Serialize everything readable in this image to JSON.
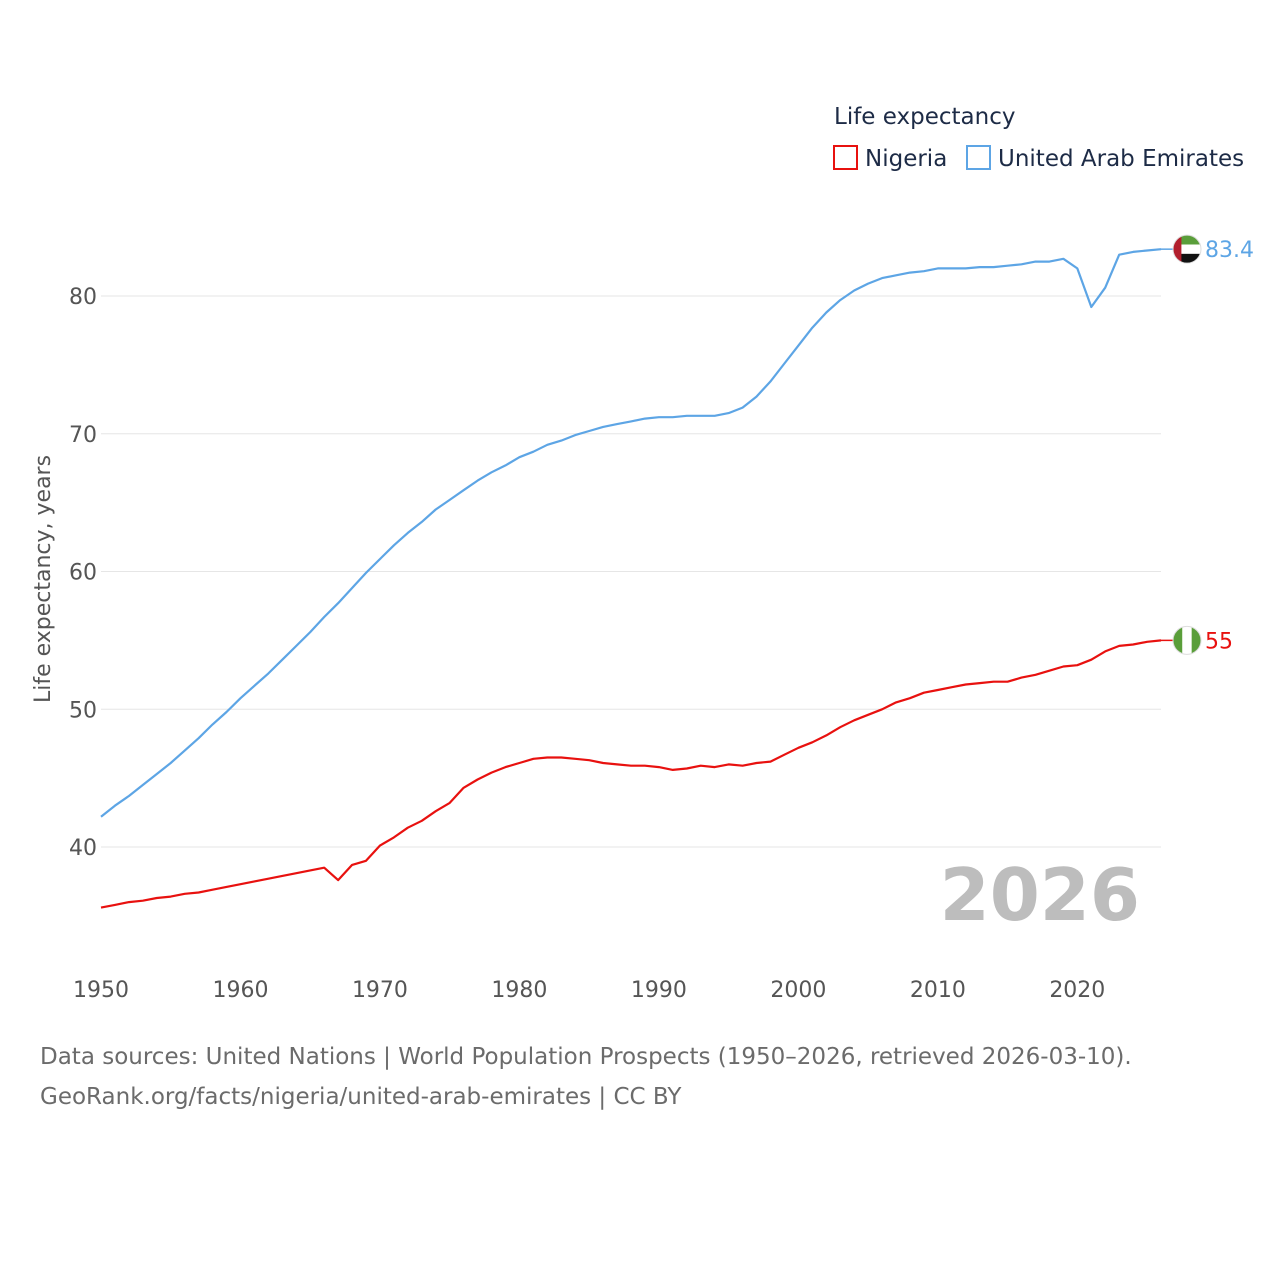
{
  "chart_data": {
    "type": "line",
    "legend_title": "Life expectancy",
    "ylabel": "Life expectancy, years",
    "xlabel": "",
    "xlim": [
      1950,
      2026
    ],
    "ylim": [
      33,
      88
    ],
    "x_ticks": [
      1950,
      1960,
      1970,
      1980,
      1990,
      2000,
      2010,
      2020
    ],
    "y_ticks": [
      40,
      50,
      60,
      70,
      80
    ],
    "current_year": "2026",
    "legend_position": "top-right",
    "series": [
      {
        "name": "Nigeria",
        "color": "#e8110f",
        "flag_icon": "nigeria-flag-icon",
        "end_label": "55",
        "x": [
          1950,
          1951,
          1952,
          1953,
          1954,
          1955,
          1956,
          1957,
          1958,
          1959,
          1960,
          1961,
          1962,
          1963,
          1964,
          1965,
          1966,
          1967,
          1968,
          1969,
          1970,
          1971,
          1972,
          1973,
          1974,
          1975,
          1976,
          1977,
          1978,
          1979,
          1980,
          1981,
          1982,
          1983,
          1984,
          1985,
          1986,
          1987,
          1988,
          1989,
          1990,
          1991,
          1992,
          1993,
          1994,
          1995,
          1996,
          1997,
          1998,
          1999,
          2000,
          2001,
          2002,
          2003,
          2004,
          2005,
          2006,
          2007,
          2008,
          2009,
          2010,
          2011,
          2012,
          2013,
          2014,
          2015,
          2016,
          2017,
          2018,
          2019,
          2020,
          2021,
          2022,
          2023,
          2024,
          2025,
          2026
        ],
        "values": [
          35.6,
          35.8,
          36.0,
          36.1,
          36.3,
          36.4,
          36.6,
          36.7,
          36.9,
          37.1,
          37.3,
          37.5,
          37.7,
          37.9,
          38.1,
          38.3,
          38.5,
          37.6,
          38.7,
          39.0,
          40.1,
          40.7,
          41.4,
          41.9,
          42.6,
          43.2,
          44.3,
          44.9,
          45.4,
          45.8,
          46.1,
          46.4,
          46.5,
          46.5,
          46.4,
          46.3,
          46.1,
          46.0,
          45.9,
          45.9,
          45.8,
          45.6,
          45.7,
          45.9,
          45.8,
          46.0,
          45.9,
          46.1,
          46.2,
          46.7,
          47.2,
          47.6,
          48.1,
          48.7,
          49.2,
          49.6,
          50.0,
          50.5,
          50.8,
          51.2,
          51.4,
          51.6,
          51.8,
          51.9,
          52.0,
          52.0,
          52.3,
          52.5,
          52.8,
          53.1,
          53.2,
          53.6,
          54.2,
          54.6,
          54.7,
          54.9,
          55.0
        ]
      },
      {
        "name": "United Arab Emirates",
        "color": "#5da5e5",
        "flag_icon": "uae-flag-icon",
        "end_label": "83.4",
        "x": [
          1950,
          1951,
          1952,
          1953,
          1954,
          1955,
          1956,
          1957,
          1958,
          1959,
          1960,
          1961,
          1962,
          1963,
          1964,
          1965,
          1966,
          1967,
          1968,
          1969,
          1970,
          1971,
          1972,
          1973,
          1974,
          1975,
          1976,
          1977,
          1978,
          1979,
          1980,
          1981,
          1982,
          1983,
          1984,
          1985,
          1986,
          1987,
          1988,
          1989,
          1990,
          1991,
          1992,
          1993,
          1994,
          1995,
          1996,
          1997,
          1998,
          1999,
          2000,
          2001,
          2002,
          2003,
          2004,
          2005,
          2006,
          2007,
          2008,
          2009,
          2010,
          2011,
          2012,
          2013,
          2014,
          2015,
          2016,
          2017,
          2018,
          2019,
          2020,
          2021,
          2022,
          2023,
          2024,
          2025,
          2026
        ],
        "values": [
          42.2,
          43.0,
          43.7,
          44.5,
          45.3,
          46.1,
          47.0,
          47.9,
          48.9,
          49.8,
          50.8,
          51.7,
          52.6,
          53.6,
          54.6,
          55.6,
          56.7,
          57.7,
          58.8,
          59.9,
          60.9,
          61.9,
          62.8,
          63.6,
          64.5,
          65.2,
          65.9,
          66.6,
          67.2,
          67.7,
          68.3,
          68.7,
          69.2,
          69.5,
          69.9,
          70.2,
          70.5,
          70.7,
          70.9,
          71.1,
          71.2,
          71.2,
          71.3,
          71.3,
          71.3,
          71.5,
          71.9,
          72.7,
          73.8,
          75.1,
          76.4,
          77.7,
          78.8,
          79.7,
          80.4,
          80.9,
          81.3,
          81.5,
          81.7,
          81.8,
          82.0,
          82.0,
          82.0,
          82.1,
          82.1,
          82.2,
          82.3,
          82.5,
          82.5,
          82.7,
          82.0,
          79.2,
          80.6,
          83.0,
          83.2,
          83.3,
          83.4
        ]
      }
    ]
  },
  "footer": {
    "line1": "Data sources: United Nations | World Population Prospects (1950–2026, retrieved 2026-03-10).",
    "line2": "GeoRank.org/facts/nigeria/united-arab-emirates | CC BY"
  }
}
